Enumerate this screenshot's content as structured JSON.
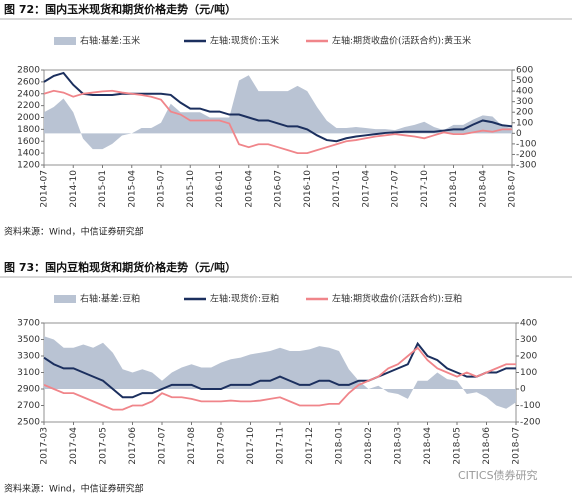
{
  "chart_data": [
    {
      "type": "line",
      "title": "图 72：国内玉米现货和期货价格走势（元/吨）",
      "source": "资料来源：Wind，中信证券研究部",
      "categories": [
        "2014-07",
        null,
        null,
        "2014-10",
        null,
        null,
        "2015-01",
        null,
        null,
        "2015-04",
        null,
        null,
        "2015-07",
        null,
        null,
        "2015-10",
        null,
        null,
        "2016-01",
        null,
        null,
        "2016-04",
        null,
        null,
        "2016-07",
        null,
        null,
        "2016-10",
        null,
        null,
        "2017-01",
        null,
        null,
        "2017-04",
        null,
        null,
        "2017-07",
        null,
        null,
        "2017-10",
        null,
        null,
        "2018-01",
        null,
        null,
        "2018-04",
        null,
        null,
        "2018-07"
      ],
      "series": [
        {
          "name": "右轴:基差:玉米",
          "type": "area",
          "axis": "y2",
          "color": "#b9c3d3",
          "values": [
            200,
            250,
            330,
            200,
            -50,
            -150,
            -150,
            -100,
            -20,
            0,
            50,
            50,
            100,
            280,
            200,
            200,
            200,
            150,
            150,
            150,
            500,
            550,
            400,
            400,
            400,
            400,
            450,
            400,
            250,
            120,
            50,
            50,
            60,
            50,
            40,
            40,
            30,
            60,
            80,
            110,
            60,
            30,
            80,
            80,
            130,
            170,
            160,
            70,
            50
          ]
        },
        {
          "name": "左轴:现货价:玉米",
          "type": "line",
          "axis": "y",
          "color": "#1b2f5e",
          "values": [
            2600,
            2700,
            2750,
            2550,
            2400,
            2380,
            2380,
            2380,
            2400,
            2400,
            2400,
            2400,
            2400,
            2380,
            2250,
            2150,
            2150,
            2100,
            2100,
            2050,
            2050,
            2000,
            1950,
            1950,
            1900,
            1850,
            1850,
            1800,
            1700,
            1620,
            1600,
            1650,
            1680,
            1700,
            1720,
            1740,
            1750,
            1760,
            1760,
            1760,
            1760,
            1780,
            1800,
            1800,
            1880,
            1950,
            1920,
            1870,
            1850
          ]
        },
        {
          "name": "左轴:期货收盘价(活跃合约):黄玉米",
          "type": "line",
          "axis": "y",
          "color": "#f0858a",
          "values": [
            2400,
            2450,
            2420,
            2350,
            2400,
            2420,
            2440,
            2450,
            2420,
            2400,
            2380,
            2350,
            2300,
            2100,
            2050,
            1950,
            1950,
            1950,
            1950,
            1900,
            1550,
            1500,
            1550,
            1550,
            1500,
            1450,
            1400,
            1400,
            1450,
            1500,
            1550,
            1600,
            1620,
            1650,
            1680,
            1700,
            1720,
            1700,
            1680,
            1650,
            1700,
            1750,
            1720,
            1720,
            1750,
            1780,
            1760,
            1800,
            1800
          ]
        }
      ],
      "ylim": [
        1200,
        2800
      ],
      "yticks": [
        1200,
        1400,
        1600,
        1800,
        2000,
        2200,
        2400,
        2600,
        2800
      ],
      "y2lim": [
        -300,
        600
      ],
      "y2ticks": [
        -300,
        -200,
        -100,
        0,
        100,
        200,
        300,
        400,
        500,
        600
      ],
      "legend": "top"
    },
    {
      "type": "line",
      "title": "图 73：国内豆粕现货和期货价格走势（元/吨）",
      "source": "资料来源：Wind，中信证券研究部",
      "categories": [
        "2017-03",
        null,
        null,
        "2017-04",
        null,
        null,
        "2017-05",
        null,
        null,
        "2017-06",
        null,
        null,
        "2017-07",
        null,
        null,
        "2017-08",
        null,
        null,
        "2017-09",
        null,
        null,
        "2017-10",
        null,
        null,
        "2017-11",
        null,
        null,
        "2017-12",
        null,
        null,
        "2018-01",
        null,
        null,
        "2018-02",
        null,
        null,
        "2018-03",
        null,
        null,
        "2018-04",
        null,
        null,
        "2018-05",
        null,
        null,
        "2018-06",
        null,
        null,
        "2018-07"
      ],
      "series": [
        {
          "name": "右轴:基差:豆粕",
          "type": "area",
          "axis": "y2",
          "color": "#b9c3d3",
          "values": [
            320,
            300,
            250,
            250,
            270,
            250,
            280,
            220,
            120,
            100,
            120,
            100,
            50,
            100,
            130,
            150,
            130,
            130,
            160,
            180,
            190,
            210,
            220,
            230,
            250,
            230,
            230,
            240,
            260,
            250,
            230,
            120,
            50,
            0,
            20,
            -20,
            -30,
            -60,
            50,
            50,
            100,
            60,
            50,
            -30,
            -20,
            -50,
            -100,
            -120,
            -80
          ]
        },
        {
          "name": "左轴:现货价:豆粕",
          "type": "line",
          "axis": "y",
          "color": "#1b2f5e",
          "values": [
            3280,
            3200,
            3150,
            3150,
            3100,
            3050,
            3000,
            2900,
            2800,
            2800,
            2850,
            2850,
            2900,
            2950,
            2950,
            2950,
            2900,
            2900,
            2900,
            2950,
            2950,
            2950,
            3000,
            3000,
            3050,
            3000,
            2950,
            2950,
            3000,
            3000,
            2950,
            2950,
            3000,
            3000,
            3050,
            3100,
            3150,
            3200,
            3450,
            3300,
            3250,
            3150,
            3100,
            3050,
            3050,
            3100,
            3100,
            3150,
            3150
          ]
        },
        {
          "name": "左轴:期货收盘价(活跃合约):豆粕",
          "type": "line",
          "axis": "y",
          "color": "#f0858a",
          "values": [
            2950,
            2900,
            2850,
            2850,
            2800,
            2750,
            2700,
            2650,
            2650,
            2700,
            2700,
            2750,
            2850,
            2800,
            2800,
            2780,
            2750,
            2750,
            2750,
            2760,
            2750,
            2750,
            2760,
            2780,
            2800,
            2750,
            2700,
            2700,
            2700,
            2720,
            2720,
            2850,
            2950,
            3000,
            3050,
            3150,
            3200,
            3300,
            3400,
            3250,
            3150,
            3100,
            3050,
            3100,
            3050,
            3100,
            3150,
            3200,
            3200
          ]
        }
      ],
      "ylim": [
        2500,
        3700
      ],
      "yticks": [
        2500,
        2700,
        2900,
        3100,
        3300,
        3500,
        3700
      ],
      "y2lim": [
        -200,
        400
      ],
      "y2ticks": [
        -200,
        -100,
        0,
        100,
        200,
        300,
        400
      ],
      "legend": "top"
    }
  ],
  "watermark": "CITICS债券研究"
}
